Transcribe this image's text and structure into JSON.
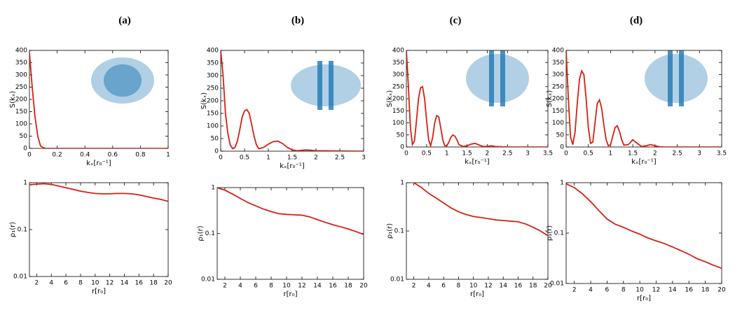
{
  "chart_data": [
    {
      "type": "line",
      "title": "(a)",
      "xlabel": "kₓ[r₀⁻¹]",
      "ylabel": "S(kₓ)",
      "xlim": [
        0,
        1
      ],
      "ylim": [
        0,
        400
      ],
      "xticks": [
        0,
        0.2,
        0.4,
        0.6,
        0.8,
        1
      ],
      "yticks": [
        0,
        50,
        100,
        150,
        200,
        250,
        300,
        350,
        400
      ],
      "x": [
        0,
        0.02,
        0.04,
        0.06,
        0.08,
        0.1,
        0.12,
        0.2,
        0.4,
        0.6,
        0.8,
        1
      ],
      "series": [
        {
          "color": "#d62013",
          "values": [
            390,
            250,
            130,
            50,
            10,
            3,
            0,
            0,
            0,
            0,
            0,
            0
          ]
        }
      ]
    },
    {
      "type": "line",
      "title": "(b)",
      "xlabel": "kₓ[r₀⁻¹]",
      "ylabel": "S(kₓ)",
      "xlim": [
        0,
        3
      ],
      "ylim": [
        0,
        400
      ],
      "xticks": [
        0,
        0.5,
        1,
        1.5,
        2,
        2.5,
        3
      ],
      "yticks": [
        0,
        50,
        100,
        150,
        200,
        250,
        300,
        350,
        400
      ],
      "x": [
        0,
        0.05,
        0.1,
        0.15,
        0.2,
        0.25,
        0.3,
        0.35,
        0.4,
        0.45,
        0.5,
        0.55,
        0.6,
        0.65,
        0.7,
        0.75,
        0.8,
        0.9,
        1.0,
        1.1,
        1.2,
        1.3,
        1.4,
        1.5,
        1.6,
        1.8,
        2.0,
        2.5,
        3.0
      ],
      "series": [
        {
          "color": "#d62013",
          "values": [
            400,
            300,
            150,
            70,
            25,
            10,
            15,
            40,
            85,
            135,
            160,
            165,
            150,
            105,
            60,
            25,
            10,
            15,
            28,
            38,
            40,
            30,
            15,
            5,
            2,
            5,
            2,
            1,
            0
          ]
        }
      ]
    },
    {
      "type": "line",
      "title": "(c)",
      "xlabel": "kₓ[r₀⁻¹]",
      "ylabel": "S(kₓ)",
      "xlim": [
        0,
        3.5
      ],
      "ylim": [
        0,
        400
      ],
      "xticks": [
        0,
        0.5,
        1,
        1.5,
        2,
        2.5,
        3,
        3.5
      ],
      "yticks": [
        0,
        50,
        100,
        150,
        200,
        250,
        300,
        350,
        400
      ],
      "x": [
        0,
        0.05,
        0.1,
        0.15,
        0.2,
        0.25,
        0.3,
        0.35,
        0.4,
        0.45,
        0.5,
        0.55,
        0.6,
        0.65,
        0.7,
        0.75,
        0.8,
        0.85,
        0.9,
        0.95,
        1.0,
        1.05,
        1.1,
        1.15,
        1.2,
        1.25,
        1.3,
        1.4,
        1.5,
        1.6,
        1.7,
        1.8,
        1.9,
        2.0,
        2.1,
        2.2,
        2.5,
        3.0,
        3.5
      ],
      "series": [
        {
          "color": "#d62013",
          "values": [
            400,
            250,
            80,
            10,
            25,
            110,
            200,
            245,
            250,
            200,
            110,
            30,
            5,
            40,
            100,
            130,
            125,
            80,
            30,
            5,
            5,
            20,
            40,
            50,
            45,
            30,
            10,
            2,
            5,
            12,
            15,
            8,
            2,
            3,
            5,
            2,
            0,
            0,
            0
          ]
        }
      ]
    },
    {
      "type": "line",
      "title": "(d)",
      "xlabel": "kₓ[r₀⁻¹]",
      "ylabel": "S(kₓ)",
      "xlim": [
        0,
        3.5
      ],
      "ylim": [
        0,
        400
      ],
      "xticks": [
        0,
        0.5,
        1,
        1.5,
        2,
        2.5,
        3,
        3.5
      ],
      "yticks": [
        0,
        50,
        100,
        150,
        200,
        250,
        300,
        350,
        400
      ],
      "x": [
        0,
        0.05,
        0.1,
        0.15,
        0.2,
        0.25,
        0.3,
        0.35,
        0.4,
        0.45,
        0.5,
        0.55,
        0.6,
        0.65,
        0.7,
        0.75,
        0.8,
        0.85,
        0.9,
        0.95,
        1.0,
        1.05,
        1.1,
        1.15,
        1.2,
        1.25,
        1.3,
        1.4,
        1.5,
        1.6,
        1.7,
        1.8,
        1.9,
        2.0,
        2.1,
        2.2,
        2.5,
        3.0,
        3.5
      ],
      "series": [
        {
          "color": "#d62013",
          "values": [
            400,
            200,
            40,
            10,
            60,
            180,
            280,
            315,
            300,
            200,
            80,
            15,
            20,
            100,
            180,
            195,
            160,
            90,
            30,
            5,
            10,
            45,
            80,
            88,
            65,
            30,
            8,
            10,
            30,
            15,
            2,
            5,
            10,
            5,
            1,
            0,
            0,
            0,
            0
          ]
        }
      ]
    },
    {
      "type": "line",
      "log_y": true,
      "xlabel": "r[r₀]",
      "ylabel": "ρ₁(r)",
      "xlim": [
        1,
        20
      ],
      "ylim": [
        0.01,
        1
      ],
      "xticks": [
        2,
        4,
        6,
        8,
        10,
        12,
        14,
        16,
        18,
        20
      ],
      "yticks": [
        0.01,
        0.1,
        1
      ],
      "x": [
        1,
        2,
        3,
        4,
        5,
        6,
        7,
        8,
        9,
        10,
        11,
        12,
        13,
        14,
        15,
        16,
        17,
        18,
        19,
        20
      ],
      "series": [
        {
          "color": "#d62013",
          "values": [
            0.9,
            0.93,
            0.95,
            0.92,
            0.85,
            0.78,
            0.72,
            0.66,
            0.62,
            0.59,
            0.58,
            0.58,
            0.59,
            0.59,
            0.58,
            0.55,
            0.51,
            0.47,
            0.44,
            0.4
          ]
        }
      ]
    },
    {
      "type": "line",
      "log_y": true,
      "xlabel": "r[r₀]",
      "ylabel": "ρ₁(r)",
      "xlim": [
        1,
        20
      ],
      "ylim": [
        0.01,
        1
      ],
      "xticks": [
        2,
        4,
        6,
        8,
        10,
        12,
        14,
        16,
        18,
        20
      ],
      "yticks": [
        0.01,
        0.1,
        1
      ],
      "x": [
        1,
        2,
        3,
        4,
        5,
        6,
        7,
        8,
        9,
        10,
        11,
        12,
        13,
        14,
        15,
        16,
        17,
        18,
        19,
        20
      ],
      "series": [
        {
          "color": "#d62013",
          "values": [
            1.0,
            0.88,
            0.72,
            0.58,
            0.47,
            0.4,
            0.34,
            0.3,
            0.27,
            0.26,
            0.255,
            0.25,
            0.23,
            0.2,
            0.175,
            0.155,
            0.14,
            0.125,
            0.11,
            0.095
          ]
        }
      ]
    },
    {
      "type": "line",
      "log_y": true,
      "xlabel": "r[r₀]",
      "ylabel": "ρ₁(r)",
      "xlim": [
        1,
        20
      ],
      "ylim": [
        0.01,
        1
      ],
      "xticks": [
        2,
        4,
        6,
        8,
        10,
        12,
        14,
        16,
        18,
        20
      ],
      "yticks": [
        0.01,
        0.1,
        1
      ],
      "x": [
        1,
        2,
        3,
        4,
        5,
        6,
        7,
        8,
        9,
        10,
        11,
        12,
        13,
        14,
        15,
        16,
        17,
        18,
        19,
        20
      ],
      "series": [
        {
          "color": "#d62013",
          "values": [
            1.2,
            1.0,
            0.8,
            0.6,
            0.48,
            0.38,
            0.3,
            0.25,
            0.22,
            0.2,
            0.19,
            0.18,
            0.17,
            0.165,
            0.16,
            0.155,
            0.14,
            0.12,
            0.1,
            0.08
          ]
        }
      ]
    },
    {
      "type": "line",
      "log_y": true,
      "xlabel": "r[r₀]",
      "ylabel": "ρ₁(r)",
      "xlim": [
        1,
        20
      ],
      "ylim": [
        0.01,
        1
      ],
      "xticks": [
        2,
        4,
        6,
        8,
        10,
        12,
        14,
        16,
        18,
        20
      ],
      "yticks": [
        0.01,
        0.1,
        1
      ],
      "x": [
        1,
        2,
        3,
        4,
        5,
        6,
        7,
        8,
        9,
        10,
        11,
        12,
        13,
        14,
        15,
        16,
        17,
        18,
        19,
        20
      ],
      "series": [
        {
          "color": "#d62013",
          "values": [
            0.95,
            0.8,
            0.6,
            0.42,
            0.28,
            0.19,
            0.15,
            0.13,
            0.11,
            0.095,
            0.08,
            0.07,
            0.062,
            0.053,
            0.045,
            0.038,
            0.031,
            0.027,
            0.023,
            0.02
          ]
        }
      ]
    }
  ]
}
